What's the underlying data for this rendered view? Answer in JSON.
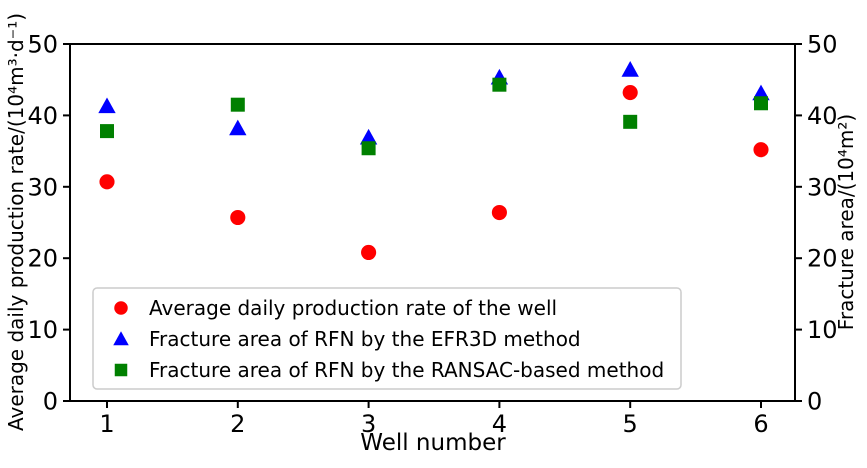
{
  "chart_data": {
    "type": "scatter",
    "title": "",
    "xlabel": "Well number",
    "ylabel_left": "Average daily production rate/(10⁴m³·d⁻¹)",
    "ylabel_right": "Fracture area/(10⁴m²)",
    "x": [
      1,
      2,
      3,
      4,
      5,
      6
    ],
    "xlim": [
      0.72,
      6.26
    ],
    "ylim": [
      0,
      50
    ],
    "yticks": [
      0,
      10,
      20,
      30,
      40,
      50
    ],
    "grid": false,
    "legend_position": "lower left",
    "series": [
      {
        "name": "Average daily production rate of the well",
        "marker": "circle",
        "color": "#ff0000",
        "axis": "left",
        "values": [
          30.7,
          25.7,
          20.8,
          26.4,
          43.2,
          35.2
        ]
      },
      {
        "name": "Fracture area of RFN by the EFR3D method",
        "marker": "triangle",
        "color": "#0000ff",
        "axis": "right",
        "values": [
          41.3,
          38.2,
          36.9,
          45.3,
          46.4,
          43.1
        ]
      },
      {
        "name": "Fracture area of RFN by the RANSAC-based method",
        "marker": "square",
        "color": "#008000",
        "axis": "right",
        "values": [
          37.8,
          41.5,
          35.4,
          44.3,
          39.1,
          41.7
        ]
      }
    ],
    "style": {
      "spine_color": "#000000",
      "legend_border_color": "#cccccc",
      "legend_background": "#ffffff"
    }
  }
}
